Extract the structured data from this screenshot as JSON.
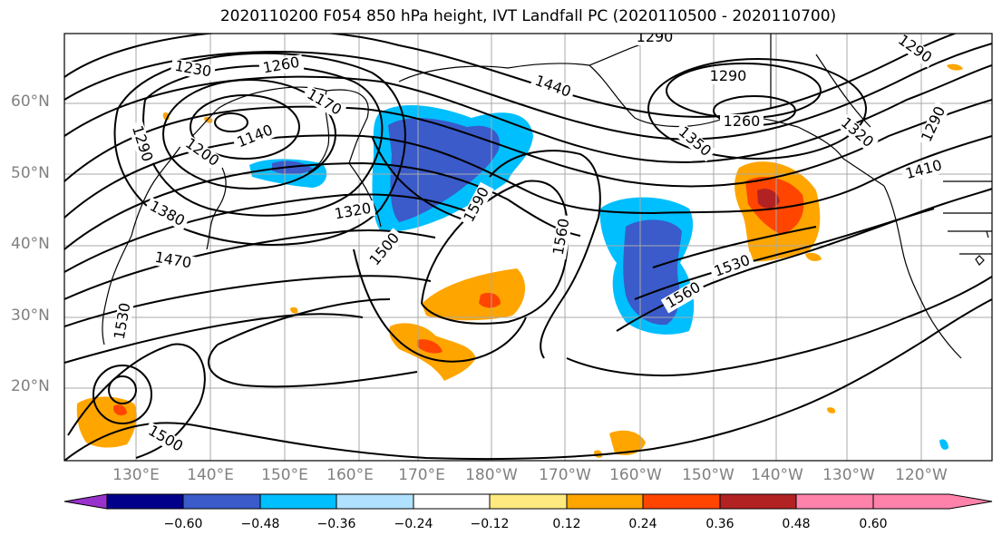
{
  "title": "2020110200 F054 850 hPa height, IVT Landfall PC (2020110500 - 2020110700)",
  "lat_labels": [
    "60°N",
    "50°N",
    "40°N",
    "30°N",
    "20°N"
  ],
  "lon_labels": [
    "130°E",
    "140°E",
    "150°E",
    "160°E",
    "170°E",
    "180°W",
    "170°W",
    "160°W",
    "150°W",
    "140°W",
    "130°W",
    "120°W"
  ],
  "contour_labels": [
    "1230",
    "1260",
    "1290",
    "1170",
    "1140",
    "1200",
    "1290",
    "1380",
    "1320",
    "1470",
    "1500",
    "1440",
    "1590",
    "1560",
    "1290",
    "1260",
    "1350",
    "1320",
    "1290",
    "1410",
    "1530",
    "1560",
    "1530",
    "1500"
  ],
  "colorbar": {
    "tick_labels": [
      "−0.60",
      "−0.48",
      "−0.36",
      "−0.24",
      "−0.12",
      "0.12",
      "0.24",
      "0.36",
      "0.48",
      "0.60"
    ],
    "colors": [
      "#9932CC",
      "#00008B",
      "#3A5BC9",
      "#00BFFF",
      "#B0E2FF",
      "#FFFFFF",
      "#FFEA7F",
      "#FFA500",
      "#FF4500",
      "#B22222",
      "#FF82AB"
    ]
  }
}
